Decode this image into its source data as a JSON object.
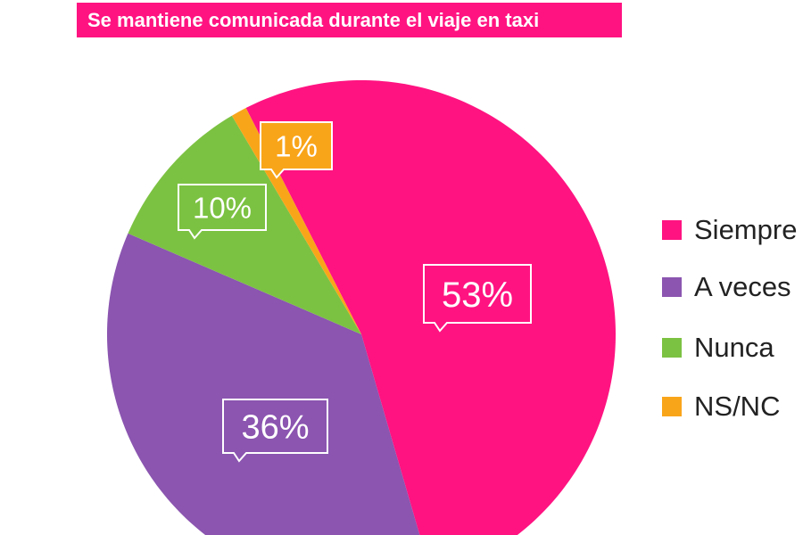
{
  "chart_data": {
    "type": "pie",
    "title": "Se mantiene comunicada durante el viaje en taxi",
    "categories": [
      "Siempre",
      "A veces",
      "Nunca",
      "NS/NC"
    ],
    "values": [
      53,
      36,
      10,
      1
    ],
    "data_labels": [
      "53%",
      "36%",
      "10%",
      "1%"
    ],
    "colors": [
      "#ff1381",
      "#8b55b0",
      "#7cc242",
      "#f9a51a"
    ],
    "legend_position": "right"
  }
}
